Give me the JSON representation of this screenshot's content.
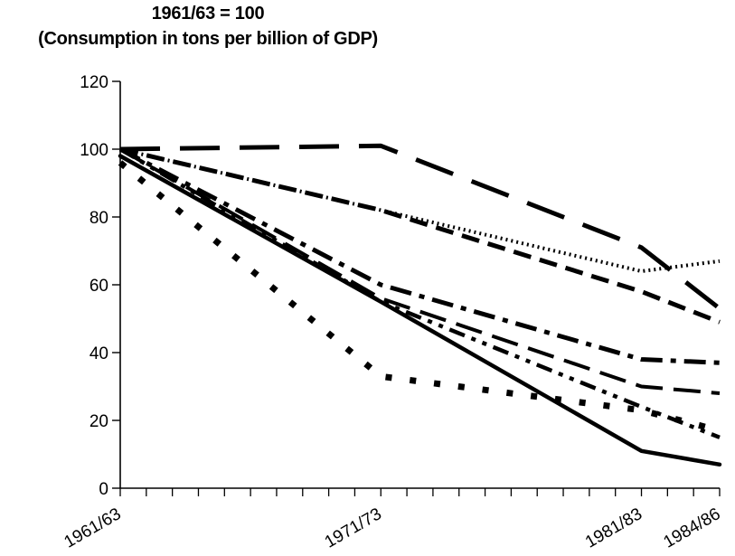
{
  "chart_data": {
    "type": "line",
    "title": "1961/63 = 100",
    "subtitle": "(Consumption in tons per billion of GDP)",
    "xlabel": "",
    "ylabel": "",
    "x": [
      1962,
      1972,
      1982,
      1985
    ],
    "x_tick_labels": [
      "1961/63",
      "1971/73",
      "1981/83",
      "1984/86"
    ],
    "ylim": [
      0,
      120
    ],
    "y_ticks": [
      0,
      20,
      40,
      60,
      80,
      100,
      120
    ],
    "grid": false,
    "legend": "none",
    "series": [
      {
        "style": "long-dash",
        "values": [
          100,
          101,
          71,
          53
        ]
      },
      {
        "style": "dotted",
        "values": [
          100,
          82,
          64,
          67
        ]
      },
      {
        "style": "dashed",
        "values": [
          100,
          82,
          58,
          49
        ]
      },
      {
        "style": "dash-dot",
        "values": [
          100,
          60,
          38,
          37
        ]
      },
      {
        "style": "long-dash-thin",
        "values": [
          100,
          56,
          30,
          28
        ]
      },
      {
        "style": "dash-dot-dot",
        "values": [
          100,
          55,
          24,
          15
        ]
      },
      {
        "style": "solid",
        "values": [
          98,
          55,
          11,
          7
        ]
      },
      {
        "style": "sparse-dots",
        "values": [
          96,
          33,
          23,
          17
        ]
      }
    ],
    "color": "#000000"
  }
}
